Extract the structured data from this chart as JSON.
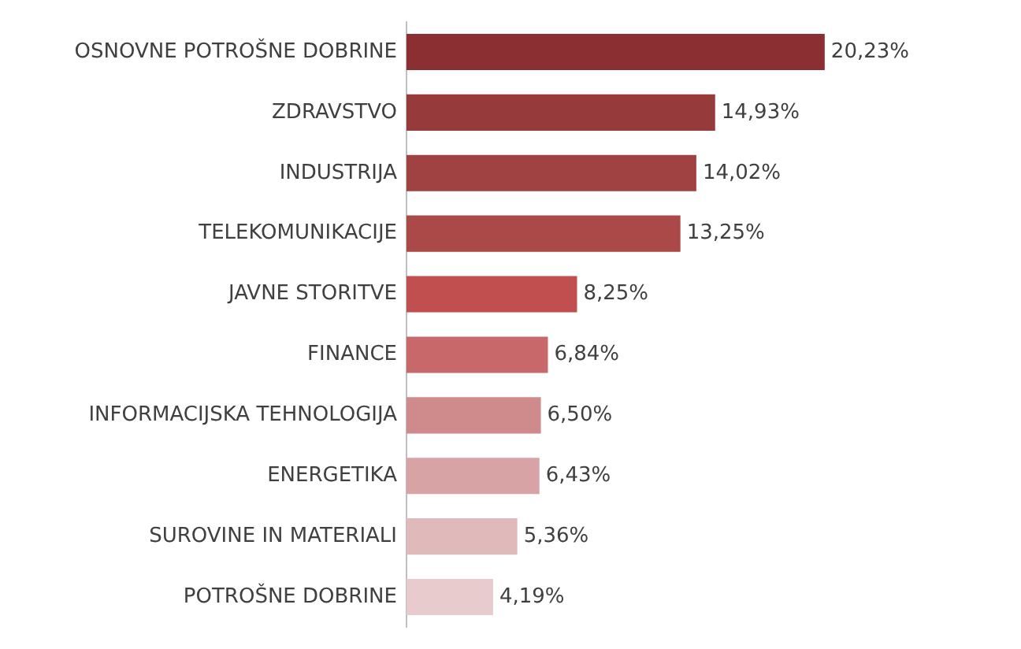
{
  "chart_data": {
    "type": "bar",
    "orientation": "horizontal",
    "categories": [
      "OSNOVNE POTROŠNE DOBRINE",
      "ZDRAVSTVO",
      "INDUSTRIJA",
      "TELEKOMUNIKACIJE",
      "JAVNE STORITVE",
      "FINANCE",
      "INFORMACIJSKA TEHNOLOGIJA",
      "ENERGETIKA",
      "SUROVINE IN MATERIALI",
      "POTROŠNE DOBRINE"
    ],
    "values": [
      20.23,
      14.93,
      14.02,
      13.25,
      8.25,
      6.84,
      6.5,
      6.43,
      5.36,
      4.19
    ],
    "colors": [
      "#8b2f33",
      "#973a3b",
      "#a04242",
      "#ab4848",
      "#c24f50",
      "#c8686a",
      "#cf8a8b",
      "#d8a3a4",
      "#e0b9ba",
      "#e8cccd"
    ],
    "value_labels": [
      "20,23%",
      "14,93%",
      "14,02%",
      "13,25%",
      "8,25%",
      "6,84%",
      "6,50%",
      "6,43%",
      "5,36%",
      "4,19%"
    ],
    "tick_labels": "y"
  }
}
